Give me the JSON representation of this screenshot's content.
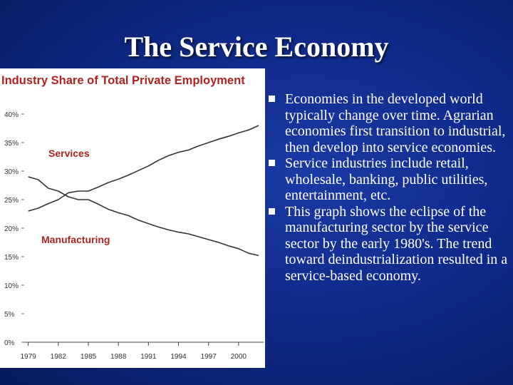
{
  "slide": {
    "title": "The Service Economy"
  },
  "bullets": [
    "Economies in the developed world typically change over time. Agrarian economies first transition to industrial, then develop into service economies.",
    " Service industries include retail, wholesale, banking, public utilities, entertainment, etc.",
    "This graph shows the eclipse of the manufacturing sector by the service sector by the early 1980's. The trend toward deindustrialization resulted in a service-based economy."
  ],
  "chart_data": {
    "type": "line",
    "title": "Industry Share of Total Private Employment",
    "xlabel": "",
    "ylabel": "",
    "x_ticks": [
      "1979",
      "1982",
      "1985",
      "1988",
      "1991",
      "1994",
      "1997",
      "2000"
    ],
    "y_ticks": [
      "0%",
      "5%",
      "10%",
      "15%",
      "20%",
      "25%",
      "30%",
      "35%",
      "40%"
    ],
    "xlim": [
      1978.6,
      2002.5
    ],
    "ylim": [
      0,
      40
    ],
    "grid": false,
    "legend": "inline labels",
    "series": [
      {
        "name": "Services",
        "color": "#333333",
        "label_color": "#b22222",
        "x": [
          1979,
          1980,
          1981,
          1982,
          1983,
          1984,
          1985,
          1986,
          1987,
          1988,
          1989,
          1990,
          1991,
          1992,
          1993,
          1994,
          1995,
          1996,
          1997,
          1998,
          1999,
          2000,
          2001,
          2002
        ],
        "y": [
          23,
          23.5,
          24.3,
          25,
          26.2,
          26.5,
          26.5,
          27.2,
          28,
          28.6,
          29.3,
          30.1,
          30.9,
          31.9,
          32.7,
          33.3,
          33.7,
          34.4,
          35,
          35.6,
          36.1,
          36.7,
          37.2,
          38
        ]
      },
      {
        "name": "Manufacturing",
        "color": "#333333",
        "label_color": "#b22222",
        "x": [
          1979,
          1980,
          1981,
          1982,
          1983,
          1984,
          1985,
          1986,
          1987,
          1988,
          1989,
          1990,
          1991,
          1992,
          1993,
          1994,
          1995,
          1996,
          1997,
          1998,
          1999,
          2000,
          2001,
          2002
        ],
        "y": [
          29,
          28.5,
          27,
          26.5,
          25.5,
          25,
          25,
          24.2,
          23.3,
          22.7,
          22.2,
          21.4,
          20.8,
          20.2,
          19.7,
          19.3,
          19,
          18.5,
          18,
          17.5,
          16.9,
          16.4,
          15.6,
          15.2
        ]
      }
    ]
  }
}
